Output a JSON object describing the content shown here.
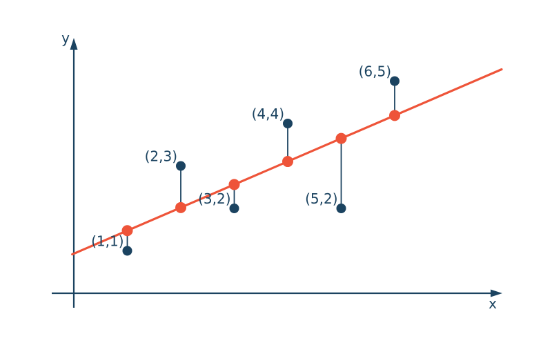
{
  "figure": {
    "background": "#ffffff",
    "axis_color": "#1B4360",
    "point_color": "#1B4360",
    "label_color": "#1B4360",
    "line_color": "#EE5439",
    "x_axis_label": "x",
    "y_axis_label": "y"
  },
  "chart_data": {
    "type": "scatter",
    "title": "",
    "xlabel": "x",
    "ylabel": "y",
    "points": [
      {
        "x": 1,
        "y": 1,
        "label": "(1,1)"
      },
      {
        "x": 2,
        "y": 3,
        "label": "(2,3)"
      },
      {
        "x": 3,
        "y": 2,
        "label": "(3,2)"
      },
      {
        "x": 4,
        "y": 4,
        "label": "(4,4)"
      },
      {
        "x": 5,
        "y": 2,
        "label": "(5,2)"
      },
      {
        "x": 6,
        "y": 5,
        "label": "(6,5)"
      },
      {
        "x": 1,
        "y": 1.476,
        "label": "",
        "fitted": true
      },
      {
        "x": 2,
        "y": 2.019,
        "label": "",
        "fitted": true
      },
      {
        "x": 3,
        "y": 2.562,
        "label": "",
        "fitted": true
      },
      {
        "x": 4,
        "y": 3.105,
        "label": "",
        "fitted": true
      },
      {
        "x": 5,
        "y": 3.648,
        "label": "",
        "fitted": true
      },
      {
        "x": 6,
        "y": 4.19,
        "label": "",
        "fitted": true
      }
    ],
    "regression_line": {
      "slope": 0.5429,
      "intercept": 0.9333,
      "x_start": -0.03,
      "x_end": 8.0
    },
    "residuals_shown": true,
    "axis_ranges": {
      "x": [
        0,
        8.4
      ],
      "y": [
        0,
        6.2
      ]
    },
    "grid": false,
    "legend": false
  }
}
